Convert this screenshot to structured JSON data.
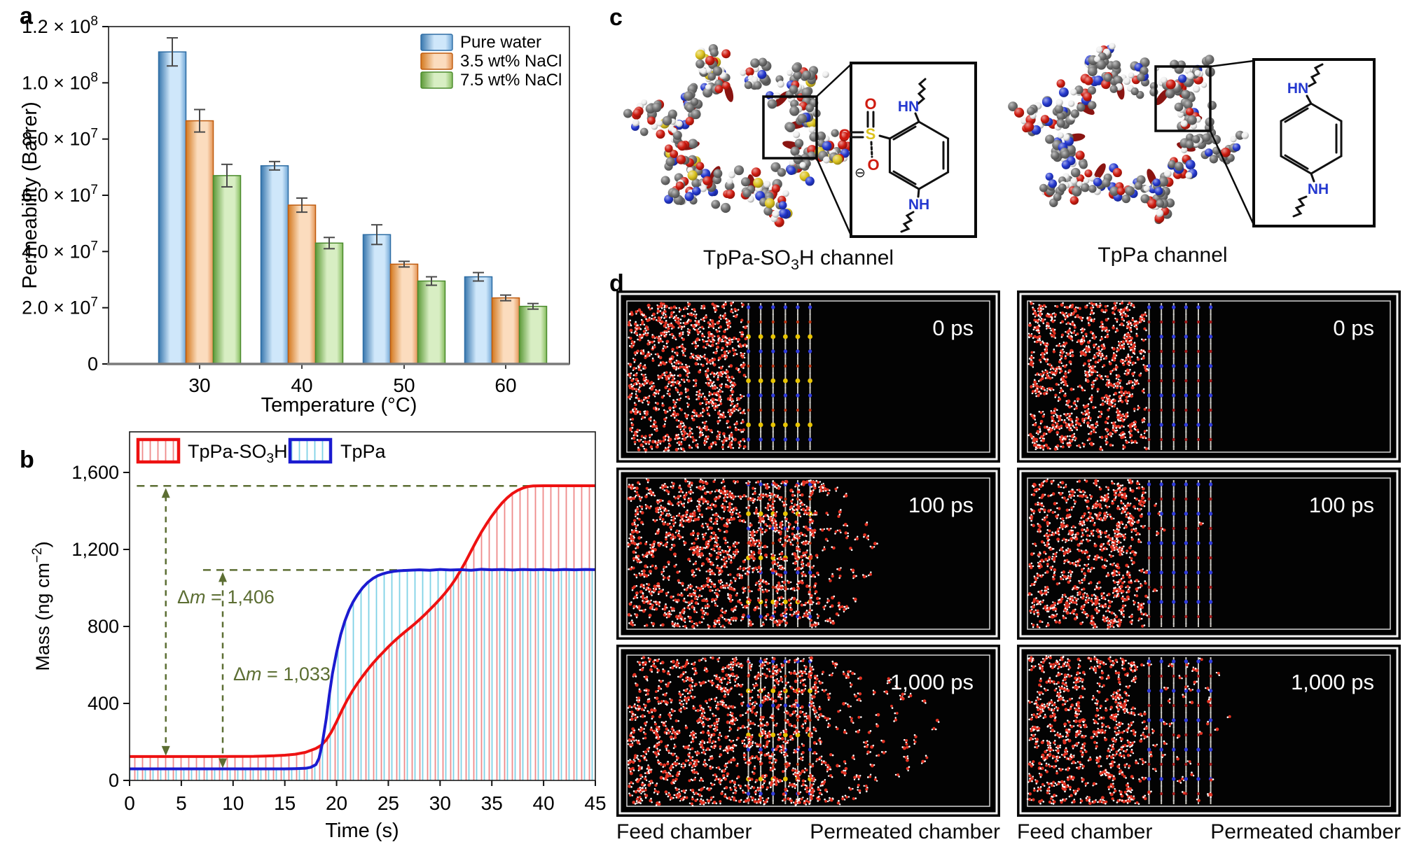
{
  "figure": {
    "panel_labels": {
      "a": "a",
      "b": "b",
      "c": "c",
      "d": "d"
    }
  },
  "chart_data": [
    {
      "type": "bar",
      "panel": "a",
      "categories": [
        "30",
        "40",
        "50",
        "60"
      ],
      "xlabel": "Temperature (°C)",
      "ylabel": "Permeability (Barrer)",
      "ylim": [
        0,
        120000000
      ],
      "grid": false,
      "legend_position": "top-right",
      "y_ticks": [
        {
          "label": "0",
          "exp": "",
          "value": 0
        },
        {
          "label": "2.0 × 10",
          "exp": "7",
          "value": 20000000
        },
        {
          "label": "4.0 × 10",
          "exp": "7",
          "value": 40000000
        },
        {
          "label": "6.0 × 10",
          "exp": "7",
          "value": 60000000
        },
        {
          "label": "8.0 × 10",
          "exp": "7",
          "value": 80000000
        },
        {
          "label": "1.0 × 10",
          "exp": "8",
          "value": 100000000
        },
        {
          "label": "1.2 × 10",
          "exp": "8",
          "value": 120000000
        }
      ],
      "series": [
        {
          "name": "Pure water",
          "values": [
            111000000,
            70500000,
            46000000,
            31000000
          ],
          "errors": [
            5000000,
            1500000,
            3500000,
            1500000
          ],
          "edge": "#2e6da4",
          "grad": [
            "#3877ae",
            "#cfe7fa",
            "#6fa6d6"
          ]
        },
        {
          "name": "3.5 wt% NaCl",
          "values": [
            86500000,
            56500000,
            35500000,
            23500000
          ],
          "errors": [
            4000000,
            2500000,
            1000000,
            1000000
          ],
          "edge": "#bf5b0e",
          "grad": [
            "#d4791f",
            "#fbdcbe",
            "#e49556"
          ]
        },
        {
          "name": "7.5 wt% NaCl",
          "values": [
            67000000,
            43000000,
            29500000,
            20500000
          ],
          "errors": [
            4000000,
            2000000,
            1500000,
            1000000
          ],
          "edge": "#4a8a2c",
          "grad": [
            "#5d9a38",
            "#d8eec3",
            "#86bd5e"
          ]
        }
      ]
    },
    {
      "type": "line",
      "panel": "b",
      "xlabel": "Time (s)",
      "ylabel_parts": {
        "pre": "Mass (ng cm",
        "sup": "−2",
        "post": ")"
      },
      "xlim": [
        0,
        45
      ],
      "ylim": [
        0,
        1600
      ],
      "x_ticks": [
        "0",
        "5",
        "10",
        "15",
        "20",
        "25",
        "30",
        "35",
        "40",
        "45"
      ],
      "y_ticks": [
        "0",
        "400",
        "800",
        "1,200",
        "1,600"
      ],
      "annotation_color": "#5c6e33",
      "series": [
        {
          "name_parts": {
            "pre": "TpPa-SO",
            "sub": "3",
            "post": "H"
          },
          "color": "#ee1111",
          "hatch": "#ef8a8a",
          "points": [
            [
              0,
              124
            ],
            [
              4,
              124
            ],
            [
              8,
              124
            ],
            [
              12,
              125
            ],
            [
              14,
              128
            ],
            [
              15,
              131
            ],
            [
              16,
              136
            ],
            [
              17,
              146
            ],
            [
              18,
              166
            ],
            [
              18.5,
              182
            ],
            [
              19,
              210
            ],
            [
              19.5,
              252
            ],
            [
              20,
              305
            ],
            [
              20.5,
              362
            ],
            [
              21,
              415
            ],
            [
              21.5,
              462
            ],
            [
              22,
              503
            ],
            [
              22.5,
              540
            ],
            [
              23,
              575
            ],
            [
              23.5,
              608
            ],
            [
              24,
              638
            ],
            [
              24.5,
              666
            ],
            [
              25,
              694
            ],
            [
              25.5,
              720
            ],
            [
              26,
              744
            ],
            [
              26.5,
              767
            ],
            [
              27,
              789
            ],
            [
              27.5,
              811
            ],
            [
              28,
              835
            ],
            [
              28.5,
              860
            ],
            [
              29,
              887
            ],
            [
              29.5,
              914
            ],
            [
              30,
              943
            ],
            [
              30.5,
              974
            ],
            [
              31,
              1008
            ],
            [
              31.5,
              1047
            ],
            [
              32,
              1092
            ],
            [
              32.5,
              1140
            ],
            [
              33,
              1192
            ],
            [
              33.5,
              1243
            ],
            [
              34,
              1291
            ],
            [
              34.5,
              1334
            ],
            [
              35,
              1374
            ],
            [
              35.5,
              1410
            ],
            [
              36,
              1442
            ],
            [
              36.5,
              1469
            ],
            [
              37,
              1491
            ],
            [
              37.5,
              1507
            ],
            [
              38,
              1519
            ],
            [
              38.5,
              1527
            ],
            [
              39,
              1530
            ],
            [
              40,
              1531
            ],
            [
              42,
              1531
            ],
            [
              45,
              1531
            ]
          ]
        },
        {
          "name_parts": {
            "pre": "TpPa",
            "sub": "",
            "post": ""
          },
          "color": "#1b1bd0",
          "hatch": "#7fd2e6",
          "points": [
            [
              0,
              60
            ],
            [
              4,
              60
            ],
            [
              8,
              60
            ],
            [
              12,
              60
            ],
            [
              15,
              60
            ],
            [
              16,
              61
            ],
            [
              17,
              63
            ],
            [
              17.5,
              68
            ],
            [
              18,
              82
            ],
            [
              18.3,
              115
            ],
            [
              18.6,
              185
            ],
            [
              19,
              320
            ],
            [
              19.3,
              445
            ],
            [
              19.6,
              555
            ],
            [
              20,
              665
            ],
            [
              20.4,
              758
            ],
            [
              20.8,
              828
            ],
            [
              21.2,
              884
            ],
            [
              21.6,
              928
            ],
            [
              22,
              963
            ],
            [
              22.5,
              1000
            ],
            [
              23,
              1028
            ],
            [
              23.5,
              1049
            ],
            [
              24,
              1064
            ],
            [
              24.5,
              1074
            ],
            [
              25,
              1081
            ],
            [
              25.5,
              1086
            ],
            [
              26,
              1089
            ],
            [
              27,
              1092
            ],
            [
              28,
              1094
            ],
            [
              29,
              1092
            ],
            [
              30,
              1096
            ],
            [
              31,
              1093
            ],
            [
              32,
              1095
            ],
            [
              33,
              1092
            ],
            [
              34,
              1097
            ],
            [
              35,
              1094
            ],
            [
              36,
              1096
            ],
            [
              37,
              1093
            ],
            [
              38,
              1096
            ],
            [
              39,
              1094
            ],
            [
              40,
              1096
            ],
            [
              41,
              1093
            ],
            [
              42,
              1096
            ],
            [
              43,
              1094
            ],
            [
              44,
              1096
            ],
            [
              45,
              1095
            ]
          ]
        }
      ],
      "annotations": [
        {
          "parts": {
            "delta": "Δ",
            "var": "m",
            "eq": " = 1,406"
          },
          "value": 1406,
          "hline_y": 1530,
          "hline_x0": 0.7,
          "vline_x": 3.5,
          "y_bottom": 124,
          "label_x": 4.6,
          "label_y": 262
        },
        {
          "parts": {
            "delta": "Δ",
            "var": "m",
            "eq": " = 1,033"
          },
          "value": 1033,
          "hline_y": 1093,
          "hline_x0": 7.1,
          "vline_x": 9,
          "y_bottom": 60,
          "label_x": 10,
          "label_y": 372
        }
      ]
    }
  ],
  "panel_c": {
    "left_label": {
      "pre": "TpPa-SO",
      "sub": "3",
      "post": "H channel"
    },
    "right_label": {
      "pre": "TpPa channel",
      "sub": "",
      "post": ""
    },
    "atom_colors": {
      "C": "#707070",
      "H": "#efefef",
      "O": "#cf1b10",
      "N": "#2438cf",
      "S": "#dcc31e",
      "capsule": "#8a1411"
    },
    "seeds": [
      7,
      8
    ],
    "inset_left": {
      "hn": "HN",
      "nh": "NH",
      "s": "S",
      "o1": "O",
      "o2": "O",
      "o3": "O",
      "charge": "⊖"
    },
    "inset_right": {
      "hn": "HN",
      "nh": "NH"
    }
  },
  "panel_d": {
    "captions": {
      "feed": "Feed chamber",
      "permeated": "Permeated chamber"
    },
    "water_colors": {
      "O": "#e13222",
      "H": "#ffffff"
    },
    "membrane_line_color": "#c9c6be",
    "panels": [
      {
        "time": "0 ps",
        "seed": 11,
        "feed": 560,
        "mem": 0,
        "plume": 0,
        "plume_w": 0,
        "ragged": 0.2,
        "mem_colors": [
          "#2f3bdc",
          "#c03a18",
          "#e8c400"
        ]
      },
      {
        "time": "100 ps",
        "seed": 22,
        "feed": 500,
        "mem": 270,
        "plume": 85,
        "plume_w": 0.085,
        "ragged": 0.5,
        "mem_colors": [
          "#2f3bdc",
          "#c03a18",
          "#e8c400"
        ]
      },
      {
        "time": "1,000 ps",
        "seed": 33,
        "feed": 440,
        "mem": 250,
        "plume": 150,
        "plume_w": 0.165,
        "ragged": 0.6,
        "mem_colors": [
          "#2f3bdc",
          "#c03a18",
          "#e8c400"
        ]
      },
      {
        "time": "0 ps",
        "seed": 44,
        "feed": 560,
        "mem": 0,
        "plume": 0,
        "plume_w": 0,
        "ragged": 0.2,
        "mem_colors": [
          "#2f3bdc",
          "#a51d1d"
        ]
      },
      {
        "time": "100 ps",
        "seed": 55,
        "feed": 520,
        "mem": 6,
        "plume": 0,
        "plume_w": 0,
        "ragged": 0.45,
        "mem_colors": [
          "#2f3bdc",
          "#a51d1d"
        ]
      },
      {
        "time": "1,000 ps",
        "seed": 66,
        "feed": 470,
        "mem": 42,
        "plume": 3,
        "plume_w": 0.035,
        "ragged": 0.65,
        "mem_colors": [
          "#2f3bdc",
          "#a51d1d"
        ]
      }
    ]
  }
}
